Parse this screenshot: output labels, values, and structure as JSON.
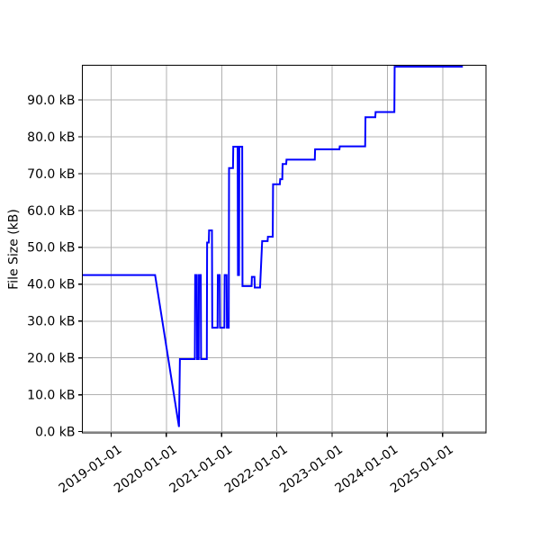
{
  "chart_data": {
    "type": "line",
    "title": "",
    "xlabel": "",
    "ylabel": "File Size (kB)",
    "legend": "none",
    "grid": true,
    "grid_color": "#b0b0b0",
    "line_color": "#0000ff",
    "axis_color": "#000000",
    "background_color": "#ffffff",
    "xlim": [
      "2018-06-25",
      "2025-10-15"
    ],
    "ylim_kb": [
      -0.33,
      99.4
    ],
    "x_ticks": [
      "2019-01-01",
      "2020-01-01",
      "2021-01-01",
      "2022-01-01",
      "2023-01-01",
      "2024-01-01",
      "2025-01-01"
    ],
    "x_tick_labels": [
      "2019-01-01",
      "2020-01-01",
      "2021-01-01",
      "2022-01-01",
      "2023-01-01",
      "2024-01-01",
      "2025-01-01"
    ],
    "y_ticks_kb": [
      0,
      10,
      20,
      30,
      40,
      50,
      60,
      70,
      80,
      90
    ],
    "y_tick_labels": [
      "0.0 kB",
      "10.0 kB",
      "20.0 kB",
      "30.0 kB",
      "40.0 kB",
      "50.0 kB",
      "60.0 kB",
      "70.0 kB",
      "80.0 kB",
      "90.0 kB"
    ],
    "series": [
      {
        "name": "file-size",
        "points": [
          [
            "2018-06-25",
            42.5
          ],
          [
            "2019-10-19",
            42.5
          ],
          [
            "2020-03-25",
            1.3
          ],
          [
            "2020-03-31",
            19.7
          ],
          [
            "2020-07-08",
            19.7
          ],
          [
            "2020-07-10",
            42.5
          ],
          [
            "2020-07-21",
            42.5
          ],
          [
            "2020-07-23",
            19.7
          ],
          [
            "2020-08-02",
            19.7
          ],
          [
            "2020-08-04",
            42.5
          ],
          [
            "2020-08-16",
            42.5
          ],
          [
            "2020-08-18",
            19.7
          ],
          [
            "2020-09-25",
            19.7
          ],
          [
            "2020-09-27",
            51.3
          ],
          [
            "2020-10-08",
            51.3
          ],
          [
            "2020-10-10",
            54.6
          ],
          [
            "2020-10-29",
            54.6
          ],
          [
            "2020-10-31",
            28.2
          ],
          [
            "2020-12-05",
            28.2
          ],
          [
            "2020-12-07",
            42.5
          ],
          [
            "2020-12-19",
            42.5
          ],
          [
            "2020-12-21",
            28.2
          ],
          [
            "2021-01-19",
            28.2
          ],
          [
            "2021-01-21",
            42.5
          ],
          [
            "2021-02-03",
            42.5
          ],
          [
            "2021-02-05",
            28.2
          ],
          [
            "2021-02-17",
            28.2
          ],
          [
            "2021-02-19",
            71.5
          ],
          [
            "2021-03-17",
            71.5
          ],
          [
            "2021-03-19",
            77.3
          ],
          [
            "2021-04-17",
            77.3
          ],
          [
            "2021-04-19",
            42.5
          ],
          [
            "2021-04-26",
            42.5
          ],
          [
            "2021-04-28",
            77.3
          ],
          [
            "2021-05-17",
            77.3
          ],
          [
            "2021-05-19",
            39.5
          ],
          [
            "2021-07-18",
            39.5
          ],
          [
            "2021-07-20",
            42.0
          ],
          [
            "2021-08-06",
            42.0
          ],
          [
            "2021-08-08",
            39.1
          ],
          [
            "2021-09-12",
            39.1
          ],
          [
            "2021-09-26",
            51.7
          ],
          [
            "2021-11-01",
            51.7
          ],
          [
            "2021-11-03",
            52.9
          ],
          [
            "2021-12-05",
            52.9
          ],
          [
            "2021-12-07",
            67.1
          ],
          [
            "2022-01-21",
            67.1
          ],
          [
            "2022-01-23",
            68.5
          ],
          [
            "2022-02-06",
            68.5
          ],
          [
            "2022-02-08",
            72.6
          ],
          [
            "2022-03-04",
            72.6
          ],
          [
            "2022-03-06",
            73.8
          ],
          [
            "2022-09-09",
            73.8
          ],
          [
            "2022-09-11",
            76.6
          ],
          [
            "2023-02-19",
            76.6
          ],
          [
            "2023-02-21",
            77.4
          ],
          [
            "2023-08-08",
            77.4
          ],
          [
            "2023-08-10",
            85.3
          ],
          [
            "2023-10-14",
            85.3
          ],
          [
            "2023-10-16",
            86.7
          ],
          [
            "2024-02-17",
            86.7
          ],
          [
            "2024-02-19",
            99.0
          ],
          [
            "2025-05-15",
            99.0
          ]
        ]
      }
    ]
  }
}
